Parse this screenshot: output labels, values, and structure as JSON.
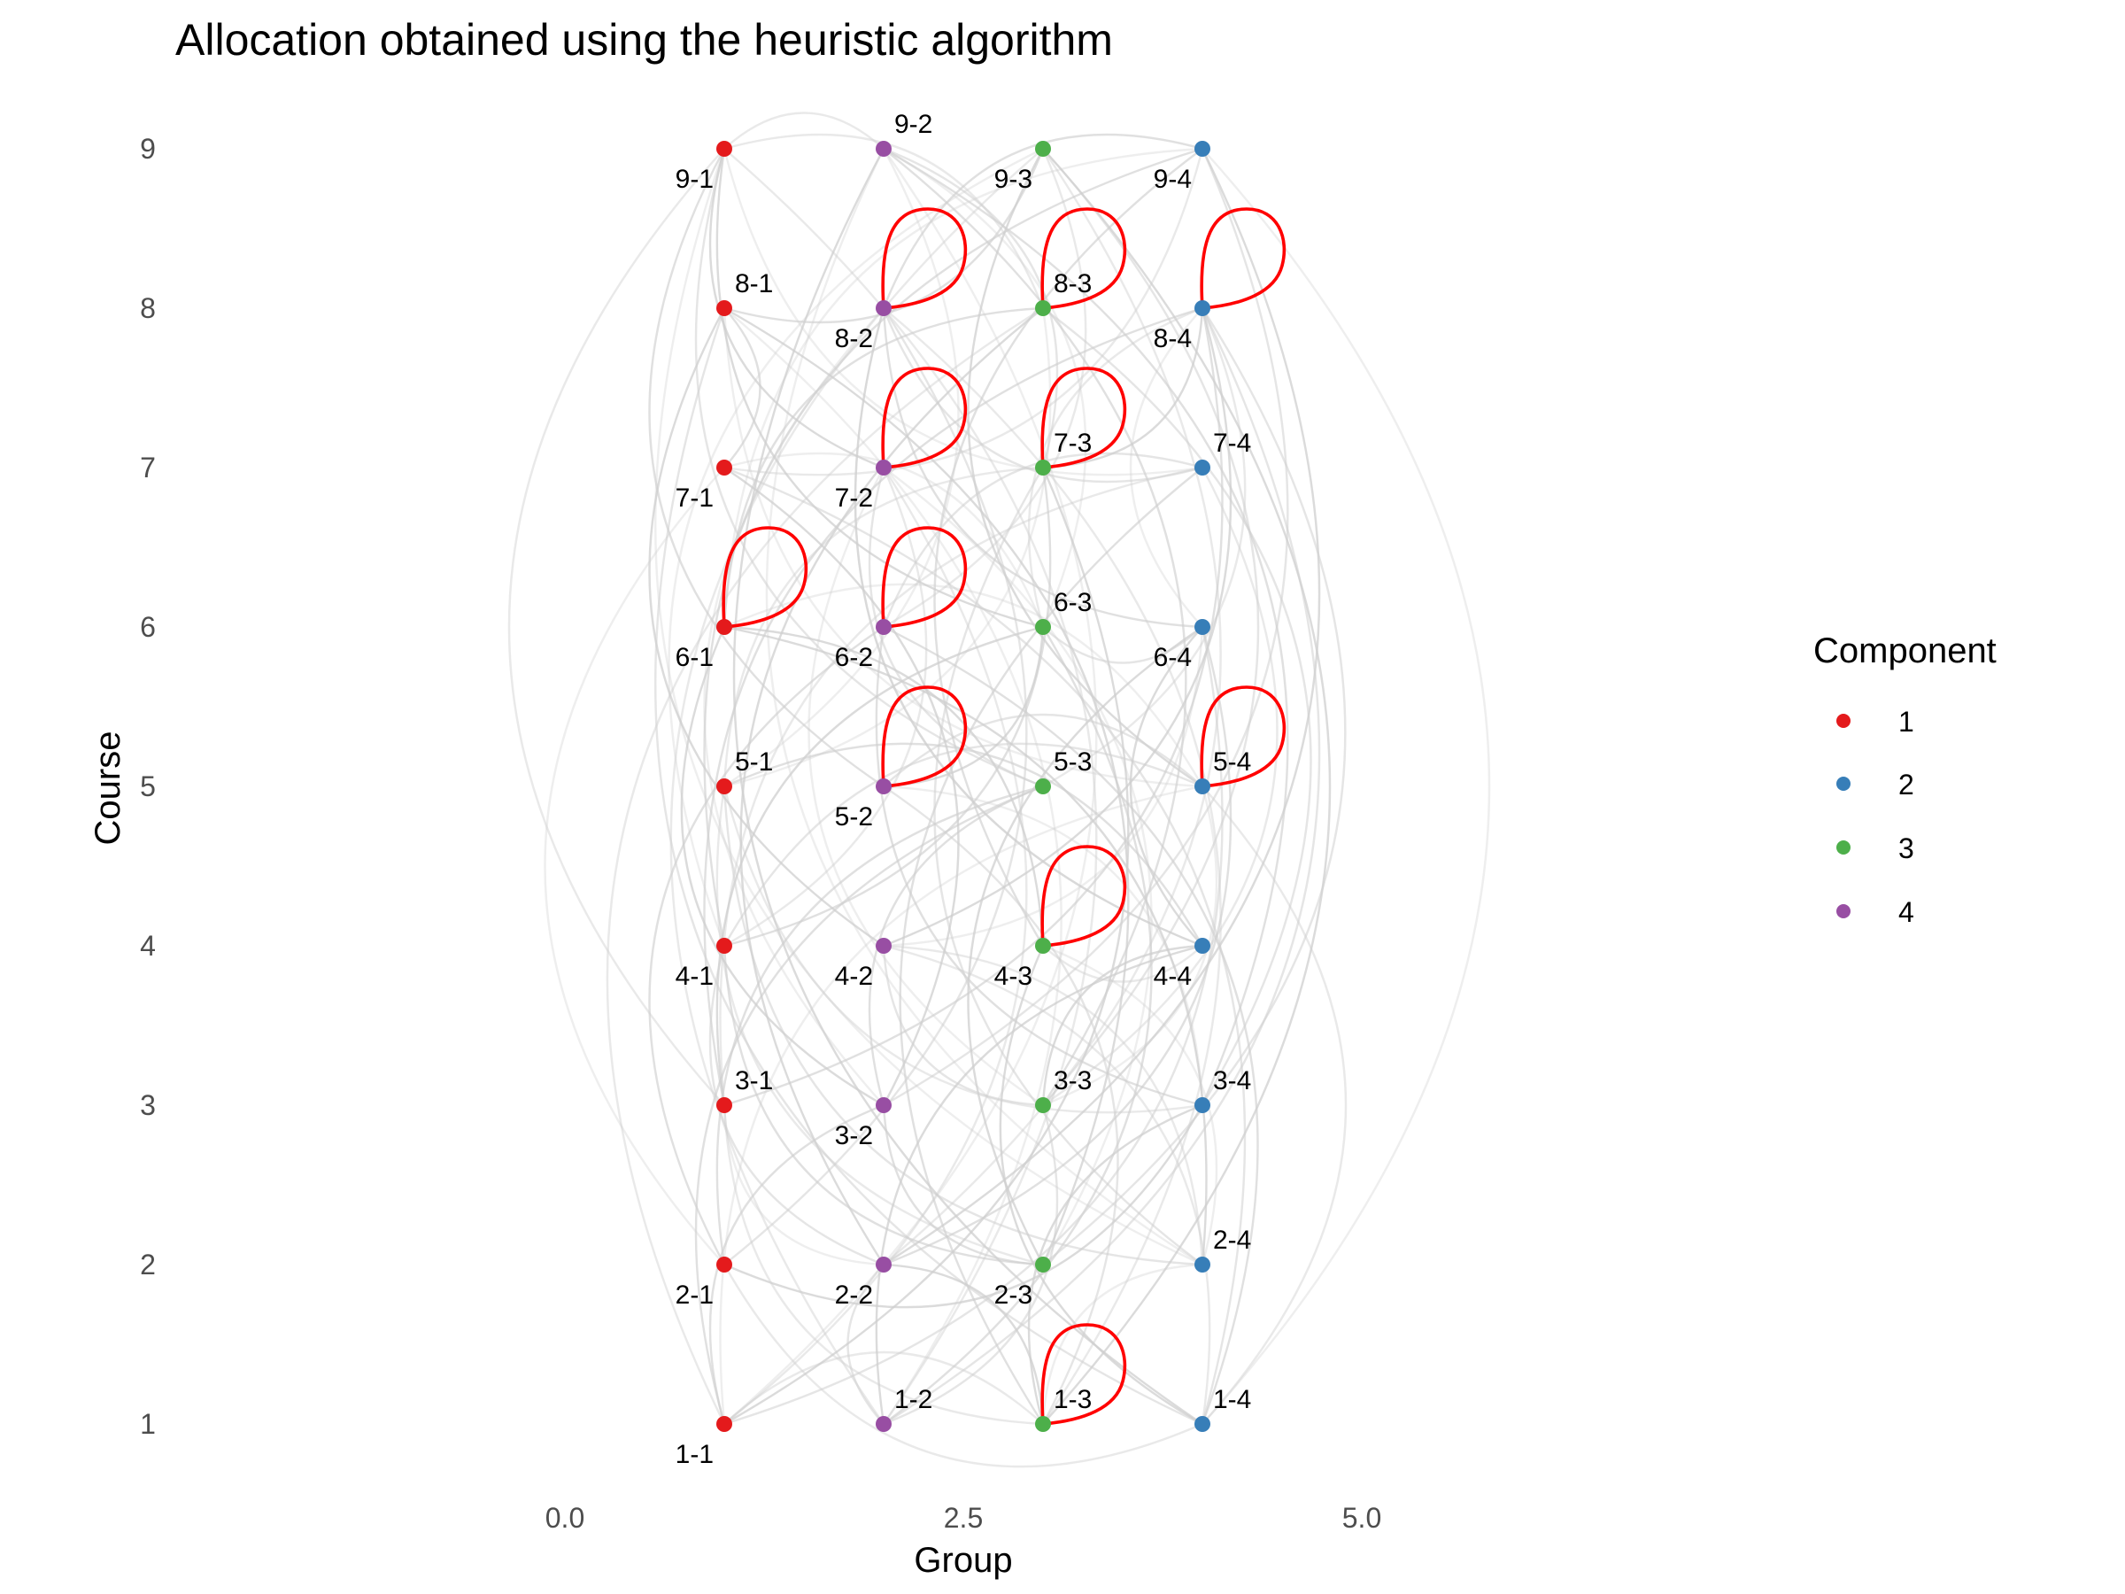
{
  "chart_data": {
    "type": "scatter",
    "title": "Allocation obtained using the heuristic algorithm",
    "xlabel": "Group",
    "ylabel": "Course",
    "xlim": [
      -2.2,
      7.0
    ],
    "ylim": [
      0.72,
      9.28
    ],
    "x_ticks": [
      "0.0",
      "2.5",
      "5.0"
    ],
    "y_ticks": [
      "1",
      "2",
      "3",
      "4",
      "5",
      "6",
      "7",
      "8",
      "9"
    ],
    "grid": false,
    "legend": {
      "title": "Component",
      "position": "right",
      "entries": [
        {
          "label": "1",
          "color": "#e41a1c"
        },
        {
          "label": "2",
          "color": "#377eb8"
        },
        {
          "label": "3",
          "color": "#4daf4a"
        },
        {
          "label": "4",
          "color": "#984ea3"
        }
      ]
    },
    "series": [
      {
        "name": "1",
        "color": "#e41a1c",
        "points": [
          {
            "x": 1,
            "y": 1,
            "label": "1-1"
          },
          {
            "x": 1,
            "y": 2,
            "label": "2-1"
          },
          {
            "x": 1,
            "y": 3,
            "label": "3-1"
          },
          {
            "x": 1,
            "y": 4,
            "label": "4-1"
          },
          {
            "x": 1,
            "y": 5,
            "label": "5-1"
          },
          {
            "x": 1,
            "y": 6,
            "label": "6-1"
          },
          {
            "x": 1,
            "y": 7,
            "label": "7-1"
          },
          {
            "x": 1,
            "y": 8,
            "label": "8-1"
          },
          {
            "x": 1,
            "y": 9,
            "label": "9-1"
          }
        ]
      },
      {
        "name": "2",
        "color": "#377eb8",
        "points": [
          {
            "x": 4,
            "y": 1,
            "label": "1-4"
          },
          {
            "x": 4,
            "y": 2,
            "label": "2-4"
          },
          {
            "x": 4,
            "y": 3,
            "label": "3-4"
          },
          {
            "x": 4,
            "y": 4,
            "label": "4-4"
          },
          {
            "x": 4,
            "y": 5,
            "label": "5-4"
          },
          {
            "x": 4,
            "y": 6,
            "label": "6-4"
          },
          {
            "x": 4,
            "y": 7,
            "label": "7-4"
          },
          {
            "x": 4,
            "y": 8,
            "label": "8-4"
          },
          {
            "x": 4,
            "y": 9,
            "label": "9-4"
          }
        ]
      },
      {
        "name": "3",
        "color": "#4daf4a",
        "points": [
          {
            "x": 3,
            "y": 1,
            "label": "1-3"
          },
          {
            "x": 3,
            "y": 2,
            "label": "2-3"
          },
          {
            "x": 3,
            "y": 3,
            "label": "3-3"
          },
          {
            "x": 3,
            "y": 4,
            "label": "4-3"
          },
          {
            "x": 3,
            "y": 5,
            "label": "5-3"
          },
          {
            "x": 3,
            "y": 6,
            "label": "6-3"
          },
          {
            "x": 3,
            "y": 7,
            "label": "7-3"
          },
          {
            "x": 3,
            "y": 8,
            "label": "8-3"
          },
          {
            "x": 3,
            "y": 9,
            "label": "9-3"
          }
        ]
      },
      {
        "name": "4",
        "color": "#984ea3",
        "points": [
          {
            "x": 2,
            "y": 1,
            "label": "1-2"
          },
          {
            "x": 2,
            "y": 2,
            "label": "2-2"
          },
          {
            "x": 2,
            "y": 3,
            "label": "3-2"
          },
          {
            "x": 2,
            "y": 4,
            "label": "4-2"
          },
          {
            "x": 2,
            "y": 5,
            "label": "5-2"
          },
          {
            "x": 2,
            "y": 6,
            "label": "6-2"
          },
          {
            "x": 2,
            "y": 7,
            "label": "7-2"
          },
          {
            "x": 2,
            "y": 8,
            "label": "8-2"
          },
          {
            "x": 2,
            "y": 9,
            "label": "9-2"
          }
        ]
      }
    ],
    "self_loops": [
      "8-2",
      "8-3",
      "8-4",
      "7-2",
      "7-3",
      "6-1",
      "6-2",
      "5-2",
      "5-4",
      "4-3",
      "1-3"
    ],
    "self_loop_color": "#ff0000",
    "edges": [
      [
        "1-1",
        "9-2"
      ],
      [
        "1-1",
        "8-3"
      ],
      [
        "1-1",
        "6-4"
      ],
      [
        "1-1",
        "3-2"
      ],
      [
        "1-1",
        "7-3"
      ],
      [
        "1-1",
        "5-4"
      ],
      [
        "1-2",
        "9-1"
      ],
      [
        "1-2",
        "2-2"
      ],
      [
        "1-2",
        "6-3"
      ],
      [
        "1-2",
        "4-4"
      ],
      [
        "1-2",
        "8-1"
      ],
      [
        "1-3",
        "3-1"
      ],
      [
        "1-3",
        "5-2"
      ],
      [
        "1-3",
        "7-4"
      ],
      [
        "1-3",
        "9-3"
      ],
      [
        "1-3",
        "2-4"
      ],
      [
        "1-3",
        "1-1"
      ],
      [
        "1-4",
        "8-1"
      ],
      [
        "1-4",
        "6-2"
      ],
      [
        "1-4",
        "4-3"
      ],
      [
        "1-4",
        "9-4"
      ],
      [
        "1-4",
        "2-1"
      ],
      [
        "2-1",
        "8-2"
      ],
      [
        "2-1",
        "5-3"
      ],
      [
        "2-1",
        "3-4"
      ],
      [
        "2-1",
        "7-1"
      ],
      [
        "2-2",
        "9-3"
      ],
      [
        "2-2",
        "4-1"
      ],
      [
        "2-2",
        "6-4"
      ],
      [
        "2-2",
        "1-3"
      ],
      [
        "2-3",
        "7-2"
      ],
      [
        "2-3",
        "5-1"
      ],
      [
        "2-3",
        "8-4"
      ],
      [
        "2-3",
        "3-2"
      ],
      [
        "2-4",
        "6-1"
      ],
      [
        "2-4",
        "9-2"
      ],
      [
        "2-4",
        "4-2"
      ],
      [
        "2-4",
        "7-3"
      ],
      [
        "3-1",
        "8-4"
      ],
      [
        "3-1",
        "6-3"
      ],
      [
        "3-1",
        "2-2"
      ],
      [
        "3-1",
        "9-1"
      ],
      [
        "3-2",
        "9-4"
      ],
      [
        "3-2",
        "5-3"
      ],
      [
        "3-2",
        "7-1"
      ],
      [
        "3-2",
        "8-2"
      ],
      [
        "3-3",
        "7-4"
      ],
      [
        "3-3",
        "1-2"
      ],
      [
        "3-3",
        "9-2"
      ],
      [
        "3-3",
        "4-4"
      ],
      [
        "3-3",
        "5-4"
      ],
      [
        "3-4",
        "5-1"
      ],
      [
        "3-4",
        "8-3"
      ],
      [
        "3-4",
        "6-2"
      ],
      [
        "3-4",
        "1-3"
      ],
      [
        "4-1",
        "9-3"
      ],
      [
        "4-1",
        "7-2"
      ],
      [
        "4-1",
        "5-4"
      ],
      [
        "4-1",
        "2-3"
      ],
      [
        "4-2",
        "8-1"
      ],
      [
        "4-2",
        "6-4"
      ],
      [
        "4-2",
        "1-4"
      ],
      [
        "4-2",
        "3-3"
      ],
      [
        "4-3",
        "9-4"
      ],
      [
        "4-3",
        "6-1"
      ],
      [
        "4-3",
        "2-4"
      ],
      [
        "4-3",
        "4-4"
      ],
      [
        "4-4",
        "8-2"
      ],
      [
        "4-4",
        "5-1"
      ],
      [
        "4-4",
        "6-4"
      ],
      [
        "5-1",
        "9-2"
      ],
      [
        "5-1",
        "7-3"
      ],
      [
        "5-1",
        "2-4"
      ],
      [
        "5-2",
        "9-1"
      ],
      [
        "5-2",
        "6-3"
      ],
      [
        "5-2",
        "3-4"
      ],
      [
        "5-3",
        "8-4"
      ],
      [
        "5-3",
        "7-2"
      ],
      [
        "5-3",
        "1-1"
      ],
      [
        "5-4",
        "9-3"
      ],
      [
        "5-4",
        "6-1"
      ],
      [
        "5-4",
        "1-4"
      ],
      [
        "5-4",
        "5-2"
      ],
      [
        "6-1",
        "8-3"
      ],
      [
        "6-1",
        "3-2"
      ],
      [
        "6-1",
        "9-4"
      ],
      [
        "6-2",
        "9-3"
      ],
      [
        "6-2",
        "7-4"
      ],
      [
        "6-2",
        "2-1"
      ],
      [
        "6-3",
        "9-1"
      ],
      [
        "6-3",
        "7-1"
      ],
      [
        "6-3",
        "8-4"
      ],
      [
        "6-3",
        "6-4"
      ],
      [
        "6-4",
        "8-2"
      ],
      [
        "6-4",
        "2-3"
      ],
      [
        "6-4",
        "8-4"
      ],
      [
        "7-1",
        "9-4"
      ],
      [
        "7-1",
        "1-4"
      ],
      [
        "7-1",
        "8-1"
      ],
      [
        "7-2",
        "9-1"
      ],
      [
        "7-2",
        "3-3"
      ],
      [
        "7-2",
        "1-1"
      ],
      [
        "7-3",
        "9-2"
      ],
      [
        "7-3",
        "4-1"
      ],
      [
        "7-3",
        "8-4"
      ],
      [
        "7-4",
        "9-1"
      ],
      [
        "7-4",
        "3-1"
      ],
      [
        "7-4",
        "8-2"
      ],
      [
        "8-1",
        "9-3"
      ],
      [
        "8-1",
        "2-3"
      ],
      [
        "8-1",
        "5-4"
      ],
      [
        "8-2",
        "1-3"
      ],
      [
        "8-2",
        "4-4"
      ],
      [
        "8-2",
        "9-4"
      ],
      [
        "8-3",
        "2-2"
      ],
      [
        "8-3",
        "5-1"
      ],
      [
        "8-3",
        "9-1"
      ],
      [
        "8-4",
        "1-2"
      ],
      [
        "8-4",
        "3-1"
      ],
      [
        "8-4",
        "4-2"
      ],
      [
        "9-1",
        "2-4"
      ],
      [
        "9-1",
        "9-2"
      ],
      [
        "9-1",
        "5-3"
      ],
      [
        "9-2",
        "3-4"
      ],
      [
        "9-2",
        "1-4"
      ],
      [
        "9-2",
        "6-3"
      ],
      [
        "9-3",
        "1-2"
      ],
      [
        "9-3",
        "3-3"
      ],
      [
        "9-4",
        "4-1"
      ],
      [
        "9-4",
        "2-2"
      ]
    ],
    "edge_color": "#cfcfcf"
  }
}
